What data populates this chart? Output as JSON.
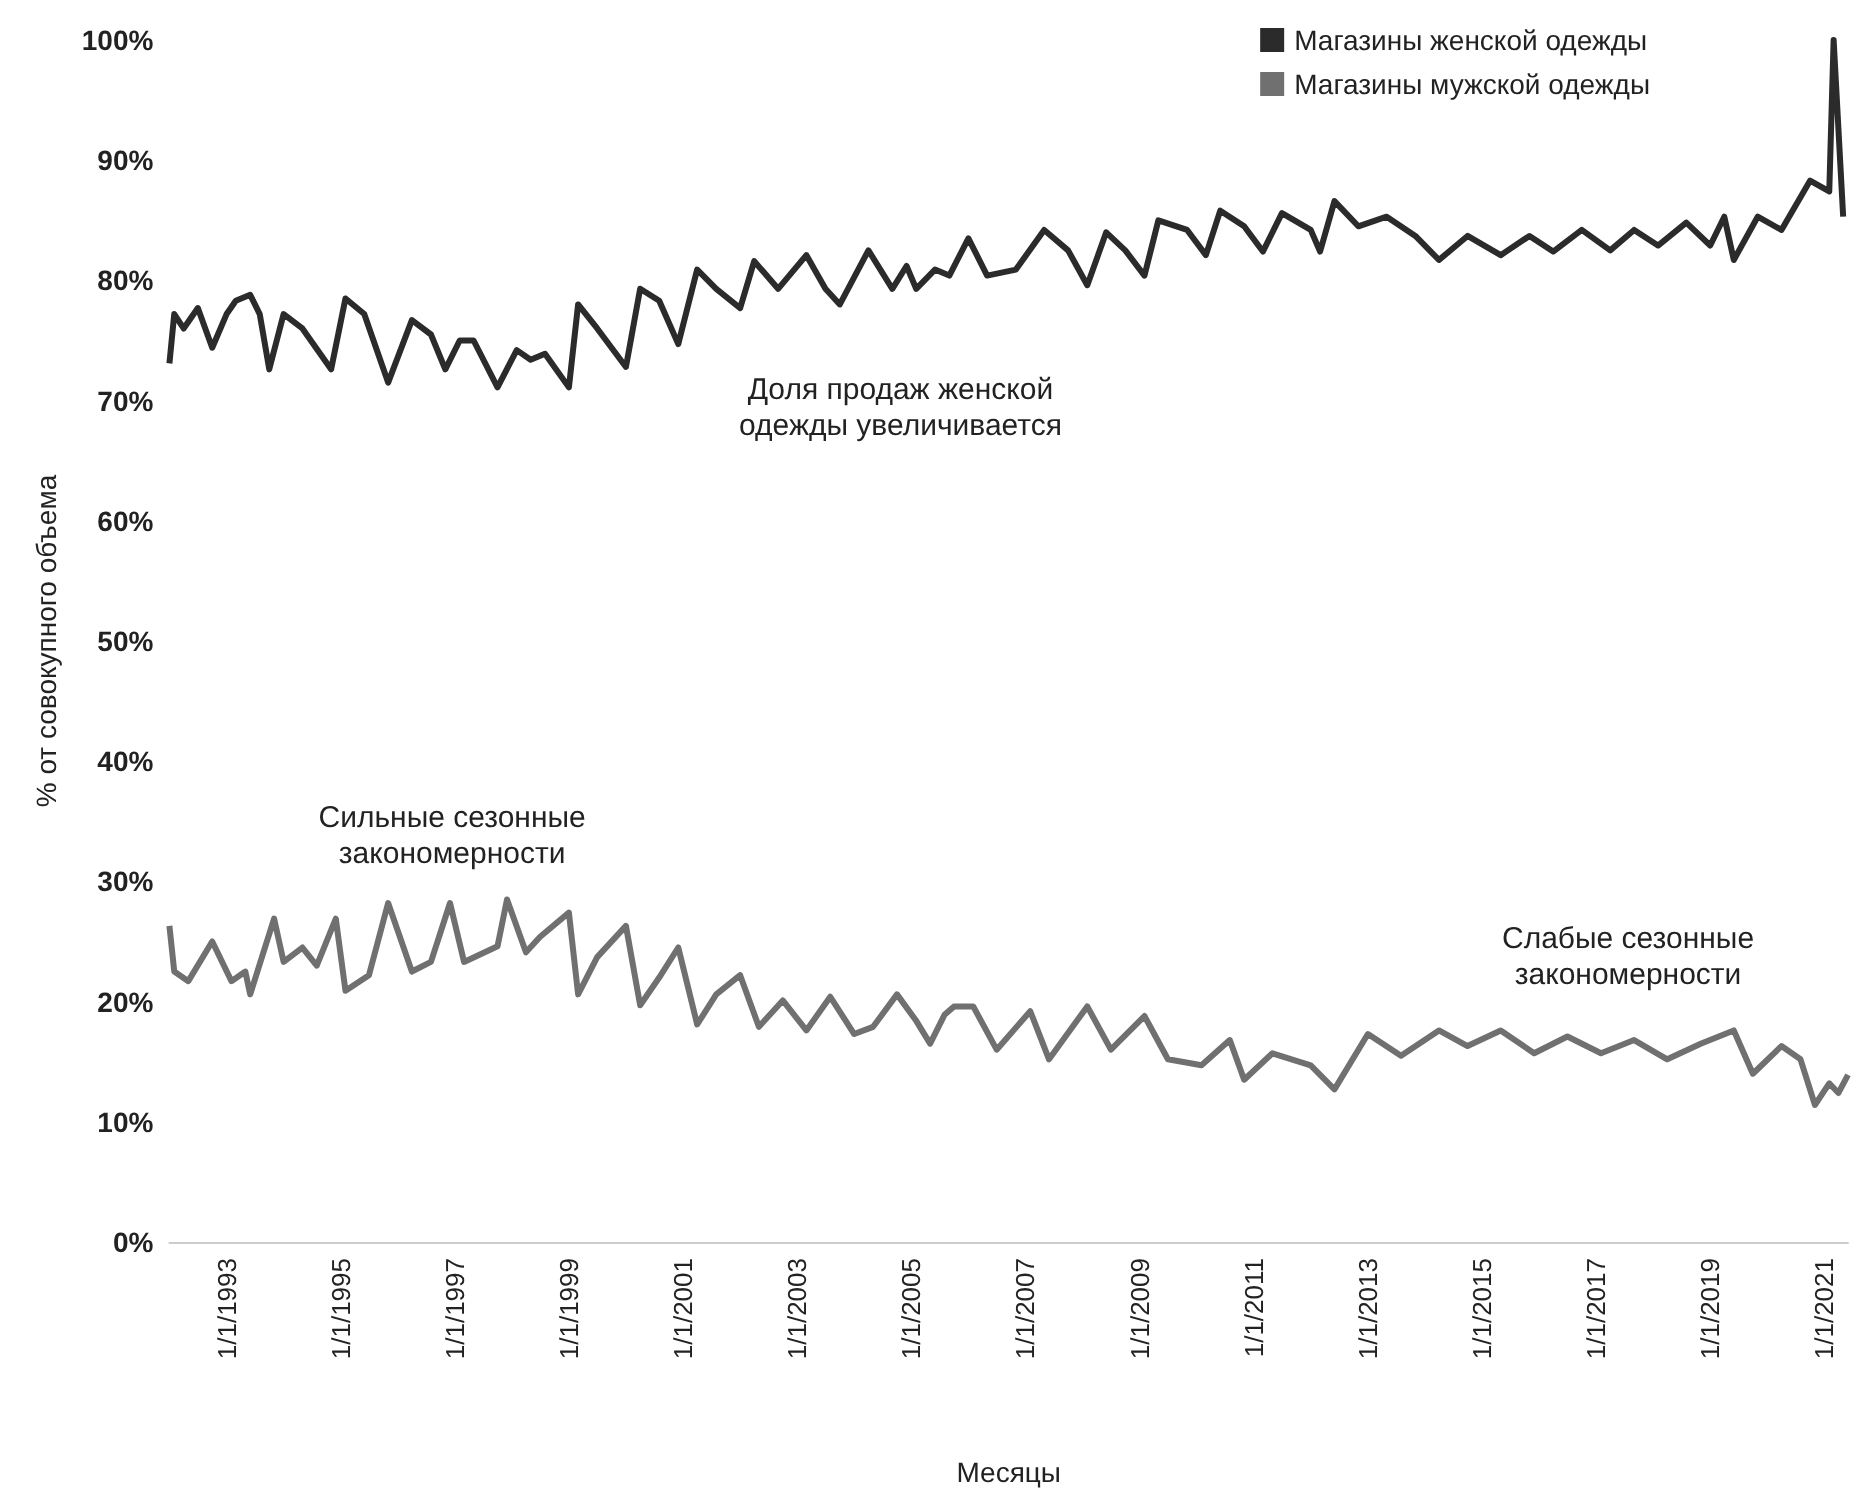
{
  "chart_data": {
    "type": "line",
    "xlabel": "Месяцы",
    "ylabel": "% от совокупного объема",
    "legend": "top right",
    "grid": false,
    "line_style": "solid",
    "xticks": [
      {
        "value": "1993-01",
        "label": "1/1/1993"
      },
      {
        "value": "1995-01",
        "label": "1/1/1995"
      },
      {
        "value": "1997-01",
        "label": "1/1/1997"
      },
      {
        "value": "1999-01",
        "label": "1/1/1999"
      },
      {
        "value": "2001-01",
        "label": "1/1/2001"
      },
      {
        "value": "2003-01",
        "label": "1/1/2003"
      },
      {
        "value": "2005-01",
        "label": "1/1/2005"
      },
      {
        "value": "2007-01",
        "label": "1/1/2007"
      },
      {
        "value": "2009-01",
        "label": "1/1/2009"
      },
      {
        "value": "2011-01",
        "label": "1/1/2011"
      },
      {
        "value": "2013-01",
        "label": "1/1/2013"
      },
      {
        "value": "2015-01",
        "label": "1/1/2015"
      },
      {
        "value": "2017-01",
        "label": "1/1/2017"
      },
      {
        "value": "2019-01",
        "label": "1/1/2019"
      },
      {
        "value": "2021-01",
        "label": "1/1/2021"
      }
    ],
    "xlim": [
      "1992-01",
      "2021-06"
    ],
    "ylim": [
      0,
      100
    ],
    "yticks": [
      {
        "value": 0,
        "label": "0%"
      },
      {
        "value": 10,
        "label": "10%"
      },
      {
        "value": 20,
        "label": "20%"
      },
      {
        "value": 30,
        "label": "30%"
      },
      {
        "value": 40,
        "label": "40%"
      },
      {
        "value": 50,
        "label": "50%"
      },
      {
        "value": 60,
        "label": "60%"
      },
      {
        "value": 70,
        "label": "70%"
      },
      {
        "value": 80,
        "label": "80%"
      },
      {
        "value": 90,
        "label": "90%"
      },
      {
        "value": 100,
        "label": "100%"
      }
    ],
    "annotations": [
      "Доля продаж женской\nодежды увеличивается",
      "Сильные сезонные\nзакономерности",
      "Слабые сезонные\nзакономерности"
    ],
    "series": [
      {
        "name": "Магазины женской одежды",
        "color": "#2b2b2b",
        "x": [
          "1992-01",
          "1992-02",
          "1992-04",
          "1992-07",
          "1992-10",
          "1993-01",
          "1993-03",
          "1993-06",
          "1993-08",
          "1993-10",
          "1994-01",
          "1994-05",
          "1994-11",
          "1995-02",
          "1995-06",
          "1995-11",
          "1996-04",
          "1996-08",
          "1996-11",
          "1997-02",
          "1997-05",
          "1997-10",
          "1998-02",
          "1998-05",
          "1998-08",
          "1999-01",
          "1999-03",
          "1999-07",
          "2000-01",
          "2000-04",
          "2000-08",
          "2000-12",
          "2001-04",
          "2001-08",
          "2002-01",
          "2002-04",
          "2002-09",
          "2003-03",
          "2003-07",
          "2003-10",
          "2004-04",
          "2004-09",
          "2004-12",
          "2005-02",
          "2005-06",
          "2005-09",
          "2006-01",
          "2006-05",
          "2006-11",
          "2007-05",
          "2007-10",
          "2008-02",
          "2008-06",
          "2008-10",
          "2009-02",
          "2009-05",
          "2009-11",
          "2010-03",
          "2010-06",
          "2010-11",
          "2011-03",
          "2011-07",
          "2012-01",
          "2012-03",
          "2012-06",
          "2012-11",
          "2013-05",
          "2013-11",
          "2014-04",
          "2014-10",
          "2015-05",
          "2015-11",
          "2016-04",
          "2016-10",
          "2017-04",
          "2017-09",
          "2018-02",
          "2018-08",
          "2019-01",
          "2019-04",
          "2019-06",
          "2019-11",
          "2020-04",
          "2020-10",
          "2021-02",
          "2021-03",
          "2021-05"
        ],
        "values": [
          73.1,
          77.2,
          76.0,
          77.7,
          74.4,
          77.2,
          78.3,
          78.8,
          77.2,
          72.6,
          77.2,
          76.0,
          72.6,
          78.5,
          77.2,
          71.5,
          76.7,
          75.5,
          72.6,
          75.0,
          75.0,
          71.1,
          74.2,
          73.4,
          73.9,
          71.1,
          78.0,
          76.0,
          72.8,
          79.3,
          78.3,
          74.7,
          80.9,
          79.3,
          77.7,
          81.6,
          79.3,
          82.1,
          79.3,
          78.0,
          82.5,
          79.3,
          81.2,
          79.3,
          80.9,
          80.4,
          83.5,
          80.4,
          80.9,
          84.2,
          82.5,
          79.6,
          84.0,
          82.5,
          80.4,
          85.0,
          84.2,
          82.1,
          85.8,
          84.5,
          82.4,
          85.6,
          84.2,
          82.4,
          86.6,
          84.5,
          85.3,
          83.7,
          81.7,
          83.7,
          82.1,
          83.7,
          82.4,
          84.2,
          82.5,
          84.2,
          82.9,
          84.8,
          82.9,
          85.3,
          81.7,
          85.3,
          84.2,
          88.3,
          87.4,
          100,
          85.3
        ]
      },
      {
        "name": "Магазины мужской одежды",
        "color": "#707070",
        "x": [
          "1992-01",
          "1992-02",
          "1992-05",
          "1992-10",
          "1993-02",
          "1993-05",
          "1993-06",
          "1993-11",
          "1994-01",
          "1994-05",
          "1994-08",
          "1994-12",
          "1995-02",
          "1995-07",
          "1995-11",
          "1996-04",
          "1996-08",
          "1996-12",
          "1997-03",
          "1997-10",
          "1997-12",
          "1998-04",
          "1998-07",
          "1999-01",
          "1999-03",
          "1999-07",
          "2000-01",
          "2000-04",
          "2000-08",
          "2000-12",
          "2001-04",
          "2001-08",
          "2002-01",
          "2002-05",
          "2002-10",
          "2003-03",
          "2003-08",
          "2004-01",
          "2004-05",
          "2004-10",
          "2005-02",
          "2005-05",
          "2005-08",
          "2005-10",
          "2006-02",
          "2006-07",
          "2007-02",
          "2007-06",
          "2008-02",
          "2008-07",
          "2009-02",
          "2009-07",
          "2010-02",
          "2010-08",
          "2010-11",
          "2011-05",
          "2012-01",
          "2012-06",
          "2013-01",
          "2013-08",
          "2014-04",
          "2014-10",
          "2015-05",
          "2015-12",
          "2016-07",
          "2017-02",
          "2017-09",
          "2018-04",
          "2018-11",
          "2019-06",
          "2019-10",
          "2020-04",
          "2020-08",
          "2020-11",
          "2021-02",
          "2021-04",
          "2021-06"
        ],
        "values": [
          26.3,
          22.5,
          21.7,
          25.0,
          21.7,
          22.5,
          20.6,
          26.9,
          23.3,
          24.5,
          23.0,
          26.9,
          20.9,
          22.2,
          28.2,
          22.5,
          23.3,
          28.2,
          23.3,
          24.6,
          28.5,
          24.1,
          25.4,
          27.4,
          20.6,
          23.7,
          26.3,
          19.7,
          22.0,
          24.5,
          18.1,
          20.6,
          22.2,
          17.9,
          20.1,
          17.6,
          20.4,
          17.3,
          17.9,
          20.6,
          18.4,
          16.5,
          18.9,
          19.6,
          19.6,
          16.0,
          19.2,
          15.2,
          19.6,
          16.0,
          18.8,
          15.2,
          14.7,
          16.8,
          13.5,
          15.7,
          14.7,
          12.7,
          17.3,
          15.5,
          17.6,
          16.3,
          17.6,
          15.7,
          17.1,
          15.7,
          16.8,
          15.2,
          16.5,
          17.6,
          14.0,
          16.3,
          15.2,
          11.4,
          13.2,
          12.4,
          13.9
        ]
      }
    ]
  }
}
